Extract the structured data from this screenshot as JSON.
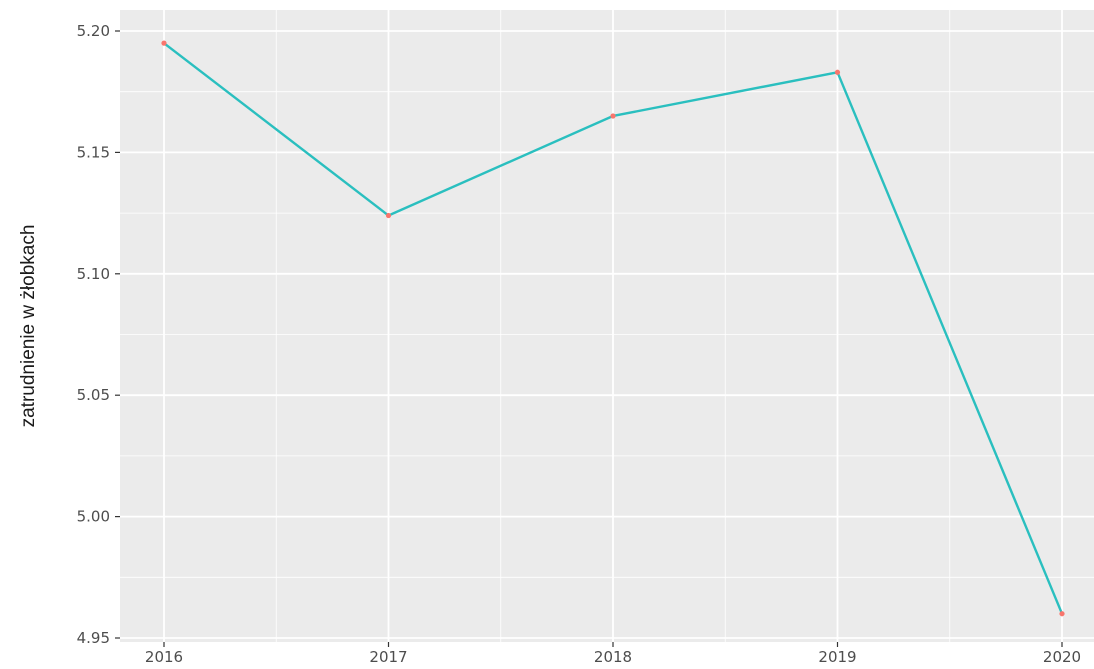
{
  "chart_data": {
    "type": "line",
    "title": "",
    "xlabel": "",
    "ylabel": "zatrudnienie w żłobkach",
    "x": [
      2016,
      2017,
      2018,
      2019,
      2020
    ],
    "x_tick_labels": [
      "2016",
      "2017",
      "2018",
      "2019",
      "2020"
    ],
    "y_ticks": [
      4.95,
      5.0,
      5.05,
      5.1,
      5.15,
      5.2
    ],
    "y_tick_labels": [
      "4.95",
      "5.00",
      "5.05",
      "5.10",
      "5.15",
      "5.20"
    ],
    "xlim": [
      2016,
      2020
    ],
    "ylim": [
      4.95,
      5.2
    ],
    "series": [
      {
        "values": [
          5.195,
          5.124,
          5.165,
          5.183,
          4.96
        ],
        "line_color": "#2abfbf",
        "point_color": "#f8766d"
      }
    ],
    "grid": true,
    "legend": "none",
    "panel_background": "#ebebeb",
    "grid_color": "#ffffff"
  }
}
